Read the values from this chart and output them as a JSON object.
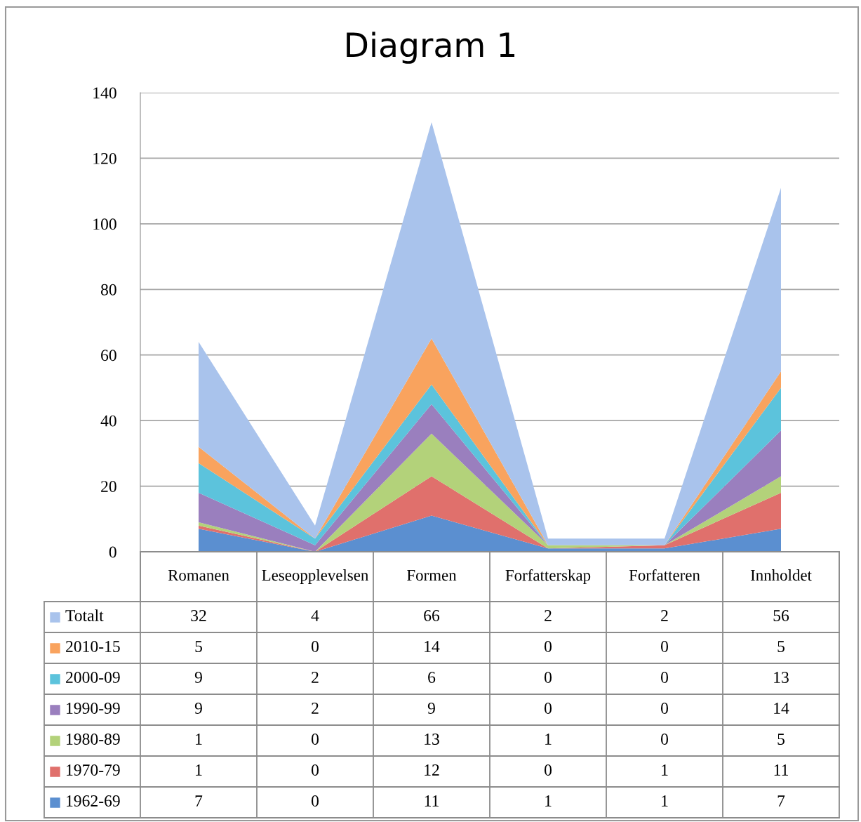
{
  "chart_data": {
    "type": "area",
    "title": "Diagram 1",
    "stacked": true,
    "categories": [
      "Romanen",
      "Leseopplevelsen",
      "Formen",
      "Forfatterskap",
      "Forfatteren",
      "Innholdet"
    ],
    "series": [
      {
        "name": "1962-69",
        "color": "#5b8fd0",
        "values": [
          7,
          0,
          11,
          1,
          1,
          7
        ]
      },
      {
        "name": "1970-79",
        "color": "#e0706c",
        "values": [
          1,
          0,
          12,
          0,
          1,
          11
        ]
      },
      {
        "name": "1980-89",
        "color": "#b3d27a",
        "values": [
          1,
          0,
          13,
          1,
          0,
          5
        ]
      },
      {
        "name": "1990-99",
        "color": "#9a7fbe",
        "values": [
          9,
          2,
          9,
          0,
          0,
          14
        ]
      },
      {
        "name": "2000-09",
        "color": "#5cc3dc",
        "values": [
          9,
          2,
          6,
          0,
          0,
          13
        ]
      },
      {
        "name": "2010-15",
        "color": "#f9a35e",
        "values": [
          5,
          0,
          14,
          0,
          0,
          5
        ]
      },
      {
        "name": "Totalt",
        "color": "#a9c3ec",
        "values": [
          32,
          4,
          66,
          2,
          2,
          56
        ]
      }
    ],
    "ylim": [
      0,
      140
    ],
    "yticks": [
      0,
      20,
      40,
      60,
      80,
      100,
      120,
      140
    ],
    "grid": "y",
    "legend": "bottom",
    "data_labels": true
  }
}
